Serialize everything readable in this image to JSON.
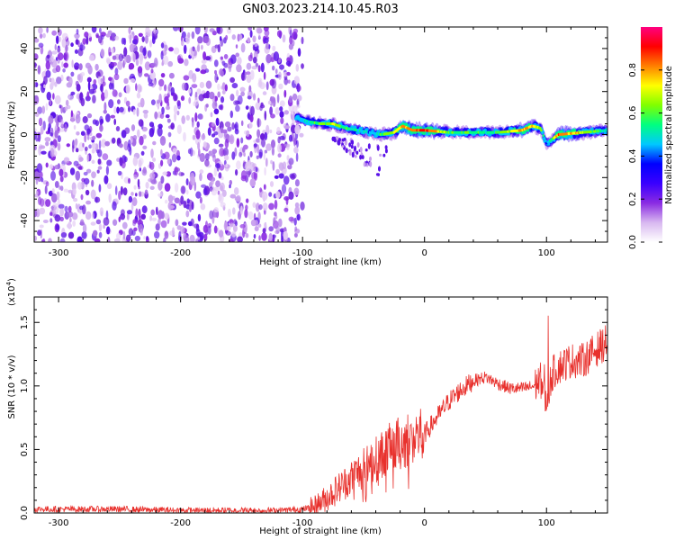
{
  "title": "GN03.2023.214.10.45.R03",
  "colorbar": {
    "label": "Normalized spectral amplitude",
    "ticks": [
      "0.0",
      "0.2",
      "0.4",
      "0.6",
      "0.8"
    ],
    "tick_values": [
      0.0,
      0.2,
      0.4,
      0.6,
      0.8
    ],
    "range": [
      0,
      1
    ],
    "colormap": [
      "#ffffff",
      "#d8b8f0",
      "#8a2be2",
      "#3a00ff",
      "#0000ff",
      "#00c8ff",
      "#00ff80",
      "#80ff00",
      "#ffff00",
      "#ff8000",
      "#ff0000",
      "#ff0080"
    ]
  },
  "chart_data": [
    {
      "type": "heatmap",
      "xlabel": "Height of straight line (km)",
      "ylabel": "Frequency (Hz)",
      "xlim": [
        -320,
        150
      ],
      "ylim": [
        -50,
        50
      ],
      "xticks": [
        -300,
        -200,
        -100,
        0,
        100
      ],
      "xtick_labels": [
        "-300",
        "-200",
        "-100",
        "0",
        "100"
      ],
      "yticks": [
        -40,
        -20,
        0,
        20,
        40
      ],
      "ytick_labels": [
        "-40",
        "-20",
        "0",
        "20",
        "40"
      ],
      "noise_region_x": [
        -320,
        -100
      ],
      "ridge": {
        "description_x": [
          -105,
          -95,
          -85,
          -75,
          -65,
          -55,
          -45,
          -35,
          -25,
          -18,
          -10,
          0,
          20,
          40,
          60,
          80,
          88,
          95,
          100,
          110,
          130,
          150
        ],
        "freq": [
          8,
          6,
          5,
          5,
          3,
          2,
          1,
          0,
          1,
          4,
          2,
          2,
          1,
          1,
          1,
          2,
          4,
          3,
          -4,
          0,
          1,
          2
        ],
        "amplitude": [
          0.45,
          0.5,
          0.6,
          0.65,
          0.55,
          0.5,
          0.45,
          0.55,
          0.7,
          0.8,
          0.85,
          0.9,
          0.6,
          0.55,
          0.55,
          0.8,
          0.75,
          0.6,
          0.4,
          0.85,
          0.7,
          0.5
        ]
      },
      "color_series": "Normalized spectral amplitude"
    },
    {
      "type": "line",
      "xlabel": "Height of straight line (km)",
      "ylabel": "SNR (10 * v/v)",
      "y_multiplier": "(x10",
      "y_multiplier_exp": "4",
      "y_multiplier_close": ")",
      "xlim": [
        -320,
        150
      ],
      "ylim": [
        0,
        1.7
      ],
      "xticks": [
        -300,
        -200,
        -100,
        0,
        100
      ],
      "xtick_labels": [
        "-300",
        "-200",
        "-100",
        "0",
        "100"
      ],
      "yticks": [
        0.0,
        0.5,
        1.0,
        1.5
      ],
      "ytick_labels": [
        "0.0",
        "0.5",
        "1.0",
        "1.5"
      ],
      "line_color": "#e8312d",
      "series": [
        {
          "x": [
            -320,
            -300,
            -250,
            -200,
            -150,
            -120,
            -100,
            -90,
            -80,
            -70,
            -60,
            -50,
            -40,
            -30,
            -20,
            -10,
            0,
            10,
            20,
            30,
            40,
            50,
            60,
            70,
            80,
            90,
            95,
            100,
            105,
            110,
            120,
            130,
            140,
            150
          ],
          "y": [
            0.03,
            0.03,
            0.03,
            0.02,
            0.02,
            0.02,
            0.03,
            0.05,
            0.12,
            0.2,
            0.28,
            0.35,
            0.42,
            0.5,
            0.55,
            0.6,
            0.62,
            0.75,
            0.88,
            0.97,
            1.04,
            1.07,
            1.02,
            0.98,
            0.98,
            1.0,
            1.05,
            0.9,
            1.1,
            1.15,
            1.2,
            1.2,
            1.28,
            1.35
          ]
        }
      ]
    }
  ]
}
